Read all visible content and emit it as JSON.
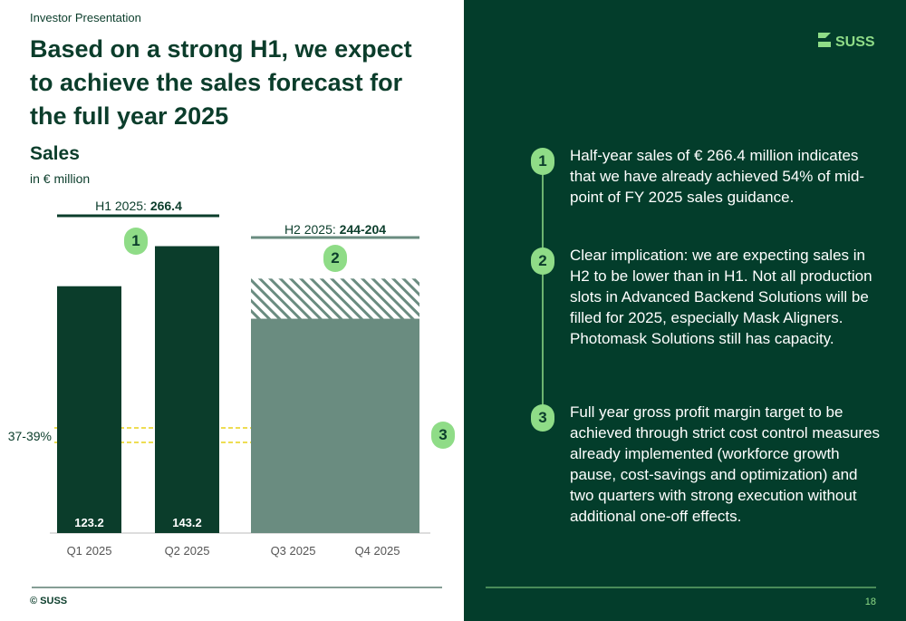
{
  "header": {
    "eyebrow": "Investor Presentation",
    "title": "Based on a strong H1, we expect to achieve the sales forecast for the full year 2025",
    "logo": "SUSS"
  },
  "chart_data": {
    "type": "bar",
    "title": "Sales",
    "subtitle": "in € million",
    "categories": [
      "Q1 2025",
      "Q2 2025",
      "Q3 2025",
      "Q4 2025"
    ],
    "values": [
      123.2,
      143.2,
      null,
      null
    ],
    "color": "#0b3d2b",
    "h2_bar": {
      "values": [
        107,
        20
      ],
      "colors": [
        "#6a8c80",
        "#6a8c80"
      ]
    },
    "groups": [
      {
        "label": "H1 2025: ",
        "value_label": "266.4"
      },
      {
        "label": "H2 2025: ",
        "value_label": "244-204"
      }
    ],
    "margin_label": "37-39%"
  },
  "points": [
    {
      "number": "1",
      "text": "Half-year sales of € 266.4 million indicates that we have already achieved 54% of mid-point of FY 2025 sales guidance."
    },
    {
      "number": "2",
      "text": "Clear implication: we are expecting sales in H2 to be lower than in H1. Not all production slots in Advanced Backend Solutions will be filled for 2025, especially Mask Aligners. Photomask Solutions still has capacity."
    },
    {
      "number": "3",
      "text": "Full year gross profit margin target to be achieved through strict cost control measures already implemented (workforce growth pause, cost-savings and optimization) and two quarters with strong execution without additional one-off effects."
    }
  ],
  "footer": {
    "copyright": "© SUSS",
    "page": "18"
  }
}
